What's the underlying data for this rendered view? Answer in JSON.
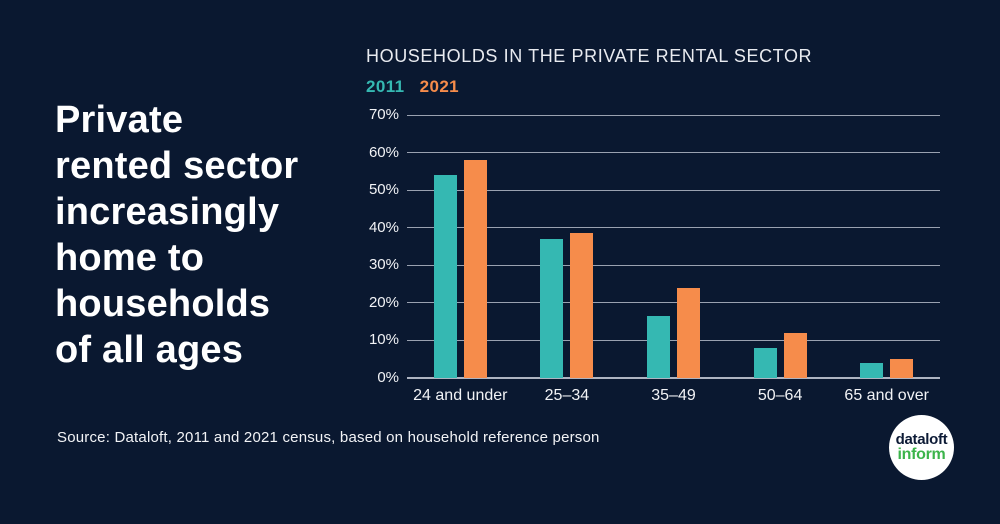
{
  "page": {
    "background_color": "#0a1830",
    "text_color": "#ffffff"
  },
  "headline": {
    "lines": [
      "Private",
      "rented sector",
      "increasingly",
      "home to",
      "households",
      "of all ages"
    ]
  },
  "chart_data": {
    "type": "bar",
    "title": "HOUSEHOLDS IN THE PRIVATE RENTAL SECTOR",
    "categories": [
      "24 and under",
      "25–34",
      "35–49",
      "50–64",
      "65 and over"
    ],
    "series": [
      {
        "name": "2011",
        "color": "#35b8b2",
        "values": [
          54,
          37,
          16.5,
          8,
          4
        ]
      },
      {
        "name": "2021",
        "color": "#f68c4b",
        "values": [
          58,
          38.5,
          24,
          12,
          5
        ]
      }
    ],
    "xlabel": "",
    "ylabel": "",
    "ylim": [
      0,
      70
    ],
    "yticks": [
      "0%",
      "10%",
      "20%",
      "30%",
      "40%",
      "50%",
      "60%",
      "70%"
    ],
    "grid": true,
    "gridline_color": "#9aa1b0",
    "legend_position": "top-left"
  },
  "source": {
    "text": "Source: Dataloft, 2011 and 2021 census, based on household reference person"
  },
  "logo": {
    "line1": "dataloft",
    "line2": "inform",
    "line1_color": "#0d1b36",
    "line2_color": "#3cb44b",
    "circle_color": "#ffffff"
  }
}
